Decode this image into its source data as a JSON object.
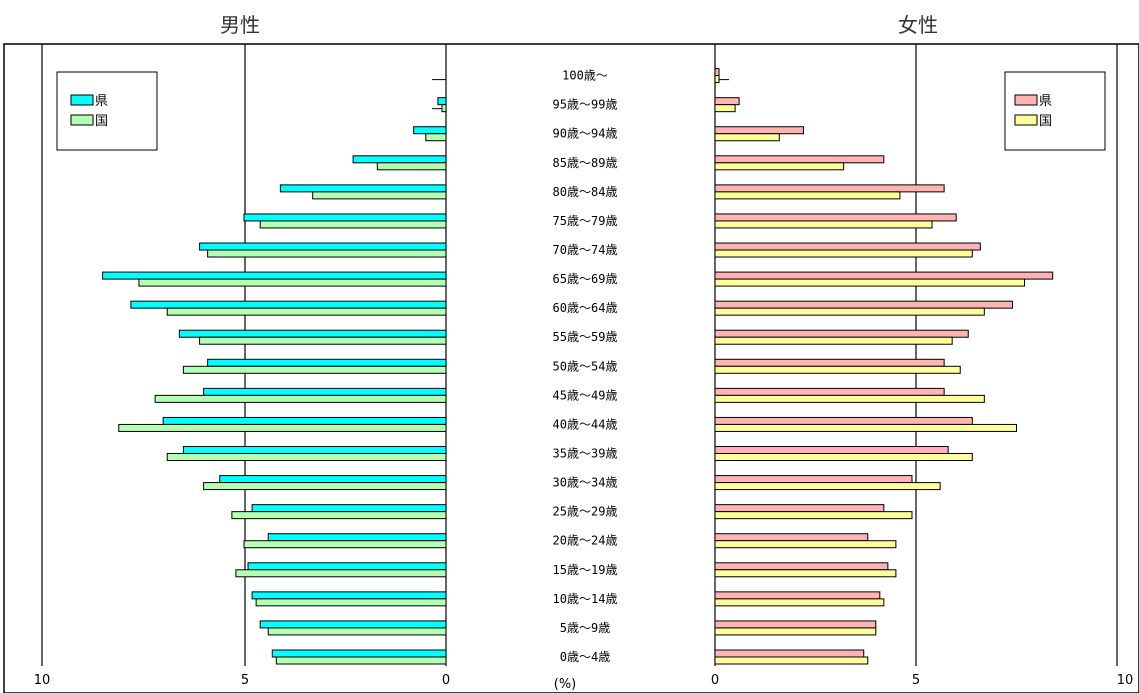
{
  "titles": {
    "male": "男性",
    "female": "女性"
  },
  "unit_label": "(%)",
  "legend": {
    "male": [
      {
        "label": "県",
        "color": "#00ffff"
      },
      {
        "label": "国",
        "color": "#b3ffb3"
      }
    ],
    "female": [
      {
        "label": "県",
        "color": "#ffb3b3"
      },
      {
        "label": "国",
        "color": "#ffff99"
      }
    ]
  },
  "chart_data": {
    "type": "bar",
    "orientation": "horizontal",
    "unit": "%",
    "xlim": [
      0,
      10
    ],
    "x_ticks": [
      "10",
      "5",
      "0"
    ],
    "categories": [
      "0歳〜4歳",
      "5歳〜9歳",
      "10歳〜14歳",
      "15歳〜19歳",
      "20歳〜24歳",
      "25歳〜29歳",
      "30歳〜34歳",
      "35歳〜39歳",
      "40歳〜44歳",
      "45歳〜49歳",
      "50歳〜54歳",
      "55歳〜59歳",
      "60歳〜64歳",
      "65歳〜69歳",
      "70歳〜74歳",
      "75歳〜79歳",
      "80歳〜84歳",
      "85歳〜89歳",
      "90歳〜94歳",
      "95歳〜99歳",
      "100歳〜"
    ],
    "panels": [
      {
        "name": "男性",
        "series": [
          {
            "name": "県",
            "values": [
              4.3,
              4.6,
              4.8,
              4.9,
              4.4,
              4.8,
              5.6,
              6.5,
              7.0,
              6.0,
              5.9,
              6.6,
              7.8,
              8.5,
              6.1,
              5.0,
              4.1,
              2.3,
              0.8,
              0.2,
              0.0
            ]
          },
          {
            "name": "国",
            "values": [
              4.2,
              4.4,
              4.7,
              5.2,
              5.0,
              5.3,
              6.0,
              6.9,
              8.1,
              7.2,
              6.5,
              6.1,
              6.9,
              7.6,
              5.9,
              4.6,
              3.3,
              1.7,
              0.5,
              0.1,
              0.0
            ]
          }
        ]
      },
      {
        "name": "女性",
        "series": [
          {
            "name": "県",
            "values": [
              3.7,
              4.0,
              4.1,
              4.3,
              3.8,
              4.2,
              4.9,
              5.8,
              6.4,
              5.7,
              5.7,
              6.3,
              7.4,
              8.4,
              6.6,
              6.0,
              5.7,
              4.2,
              2.2,
              0.6,
              0.1
            ]
          },
          {
            "name": "国",
            "values": [
              3.8,
              4.0,
              4.2,
              4.5,
              4.5,
              4.9,
              5.6,
              6.4,
              7.5,
              6.7,
              6.1,
              5.9,
              6.7,
              7.7,
              6.4,
              5.4,
              4.6,
              3.2,
              1.6,
              0.5,
              0.1
            ]
          }
        ]
      }
    ],
    "grid": true
  }
}
